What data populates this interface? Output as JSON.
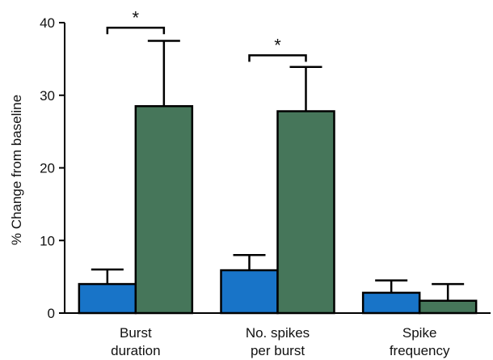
{
  "chart_data": {
    "type": "bar",
    "title": "",
    "xlabel": "",
    "ylabel": "% Change from baseline",
    "ylim": [
      0,
      40
    ],
    "yticks": [
      0,
      10,
      20,
      30,
      40
    ],
    "grid": false,
    "legend": "none",
    "categories": [
      [
        "Burst",
        "duration"
      ],
      [
        "No. spikes",
        "per burst"
      ],
      [
        "Spike",
        "frequency"
      ]
    ],
    "series": [
      {
        "color": "#1874c8",
        "values": [
          4.0,
          5.9,
          2.8
        ],
        "errors": [
          2.0,
          2.1,
          1.7
        ]
      },
      {
        "color": "#46765a",
        "values": [
          28.5,
          27.8,
          1.7
        ],
        "errors": [
          9.0,
          6.1,
          2.3
        ]
      }
    ],
    "significance": [
      {
        "category": 0,
        "label": "*",
        "top": 39.3
      },
      {
        "category": 1,
        "label": "*",
        "top": 35.5
      }
    ]
  }
}
